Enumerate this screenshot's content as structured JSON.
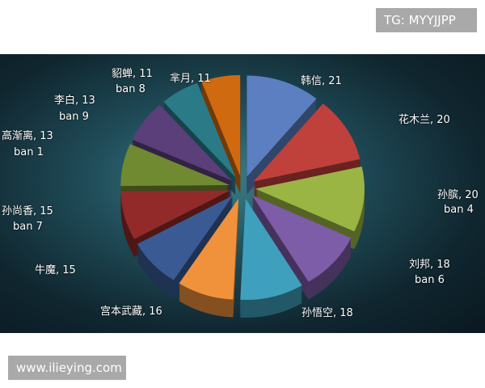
{
  "watermarks": {
    "top": "TG: MYYJJPP",
    "bottom": "www.ilieying.com"
  },
  "chart_data": {
    "type": "pie",
    "style": "3d-exploded",
    "slices": [
      {
        "label": "韩信",
        "value": 21,
        "ban": "",
        "color": "#5b7fc0"
      },
      {
        "label": "花木兰",
        "value": 20,
        "ban": "",
        "color": "#c0403c"
      },
      {
        "label": "孙膑",
        "value": 20,
        "ban": "ban 4",
        "color": "#9bb545"
      },
      {
        "label": "刘邦",
        "value": 18,
        "ban": "ban 6",
        "color": "#7d5ca8"
      },
      {
        "label": "孙悟空",
        "value": 18,
        "ban": "",
        "color": "#3ea0bc"
      },
      {
        "label": "宫本武藏",
        "value": 16,
        "ban": "",
        "color": "#f0923c"
      },
      {
        "label": "牛魔",
        "value": 15,
        "ban": "",
        "color": "#3a5a94"
      },
      {
        "label": "孙尚香",
        "value": 15,
        "ban": "ban 7",
        "color": "#922a2a"
      },
      {
        "label": "高渐离",
        "value": 13,
        "ban": "ban 1",
        "color": "#6f8a30"
      },
      {
        "label": "李白",
        "value": 13,
        "ban": "ban 9",
        "color": "#5a3f7a"
      },
      {
        "label": "貂蝉",
        "value": 11,
        "ban": "ban 8",
        "color": "#2a7a88"
      },
      {
        "label": "芈月",
        "value": 11,
        "ban": "",
        "color": "#d06a10"
      }
    ],
    "display_labels": [
      "韩信, 21",
      "花木兰, 20",
      "孙膑, 20",
      "刘邦, 18",
      "孙悟空, 18",
      "宫本武藏, 16",
      "牛魔, 15",
      "孙尚香, 15",
      "高渐离, 13",
      "李白, 13",
      "貂蝉, 11",
      "芈月, 11"
    ]
  }
}
